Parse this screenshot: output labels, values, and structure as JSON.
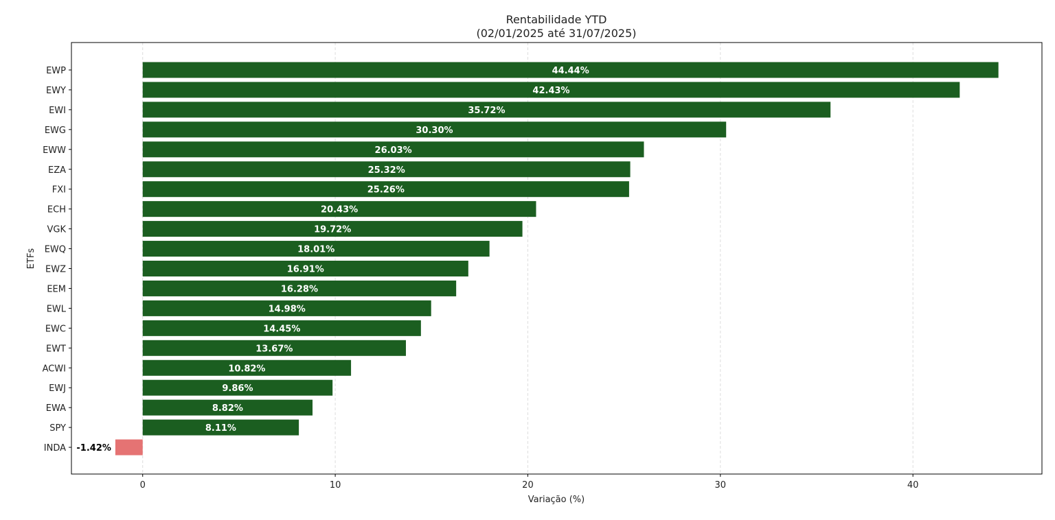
{
  "chart_data": {
    "type": "bar",
    "orientation": "horizontal",
    "title": "Rentabilidade YTD",
    "subtitle": "(02/01/2025 até 31/07/2025)",
    "xlabel": "Variação (%)",
    "ylabel": "ETFs",
    "xlim": [
      -3.7,
      46.7
    ],
    "xticks": [
      0,
      10,
      20,
      30,
      40
    ],
    "grid": "x",
    "categories": [
      "EWP",
      "EWY",
      "EWI",
      "EWG",
      "EWW",
      "EZA",
      "FXI",
      "ECH",
      "VGK",
      "EWQ",
      "EWZ",
      "EEM",
      "EWL",
      "EWC",
      "EWT",
      "ACWI",
      "EWJ",
      "EWA",
      "SPY",
      "INDA"
    ],
    "values": [
      44.44,
      42.43,
      35.72,
      30.3,
      26.03,
      25.32,
      25.26,
      20.43,
      19.72,
      18.01,
      16.91,
      16.28,
      14.98,
      14.45,
      13.67,
      10.82,
      9.86,
      8.82,
      8.11,
      -1.42
    ],
    "data_labels": [
      "44.44%",
      "42.43%",
      "35.72%",
      "30.30%",
      "26.03%",
      "25.32%",
      "25.26%",
      "20.43%",
      "19.72%",
      "18.01%",
      "16.91%",
      "16.28%",
      "14.98%",
      "14.45%",
      "13.67%",
      "10.82%",
      "9.86%",
      "8.82%",
      "8.11%",
      "-1.42%"
    ],
    "colors": {
      "positive": "#1b5e20",
      "negative": "#e57373",
      "grid": "#dddddd",
      "axis": "#000000"
    }
  }
}
